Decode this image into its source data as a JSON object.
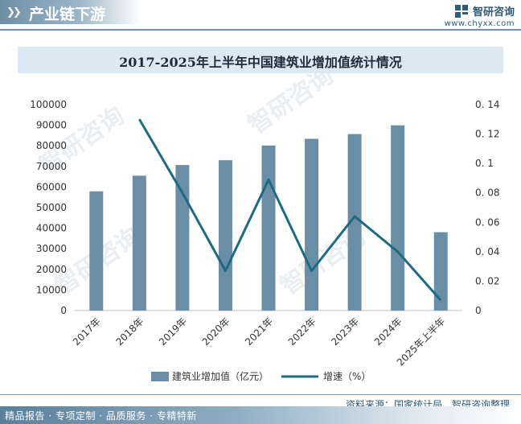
{
  "header": {
    "section_title": "产业链下游",
    "brand_name": "智研咨询",
    "brand_url": "www.chyxx.com"
  },
  "chart_data": {
    "type": "bar+line",
    "title": "2017-2025年上半年中国建筑业增加值统计情况",
    "categories": [
      "2017年",
      "2018年",
      "2019年",
      "2020年",
      "2021年",
      "2022年",
      "2023年",
      "2024年",
      "2025年上半年"
    ],
    "series": [
      {
        "name": "建筑业增加值（亿元）",
        "type": "bar",
        "axis": "left",
        "color": "#6a8ea6",
        "values": [
          57906,
          65493,
          70648,
          72996,
          80138,
          83383,
          85691,
          89949,
          38040
        ]
      },
      {
        "name": "增速（%）",
        "type": "line",
        "axis": "right",
        "color": "#1e6a82",
        "values": [
          null,
          0.13,
          0.08,
          0.027,
          0.089,
          0.027,
          0.064,
          0.04,
          0.007
        ]
      }
    ],
    "y_left": {
      "min": 0,
      "max": 100000,
      "step": 10000,
      "ticks": [
        "0",
        "10000",
        "20000",
        "30000",
        "40000",
        "50000",
        "60000",
        "70000",
        "80000",
        "90000",
        "100000"
      ]
    },
    "y_right": {
      "min": 0,
      "max": 0.14,
      "step": 0.02,
      "ticks": [
        "0",
        "0. 02",
        "0. 04",
        "0. 06",
        "0. 08",
        "0. 1",
        "0. 12",
        "0. 14"
      ]
    },
    "legend_position": "bottom",
    "grid": false
  },
  "footer": {
    "source": "资料来源：国家统计局、智研咨询整理",
    "slogan": "精品报告 · 专项定制 · 品质服务 · 专精特新"
  }
}
